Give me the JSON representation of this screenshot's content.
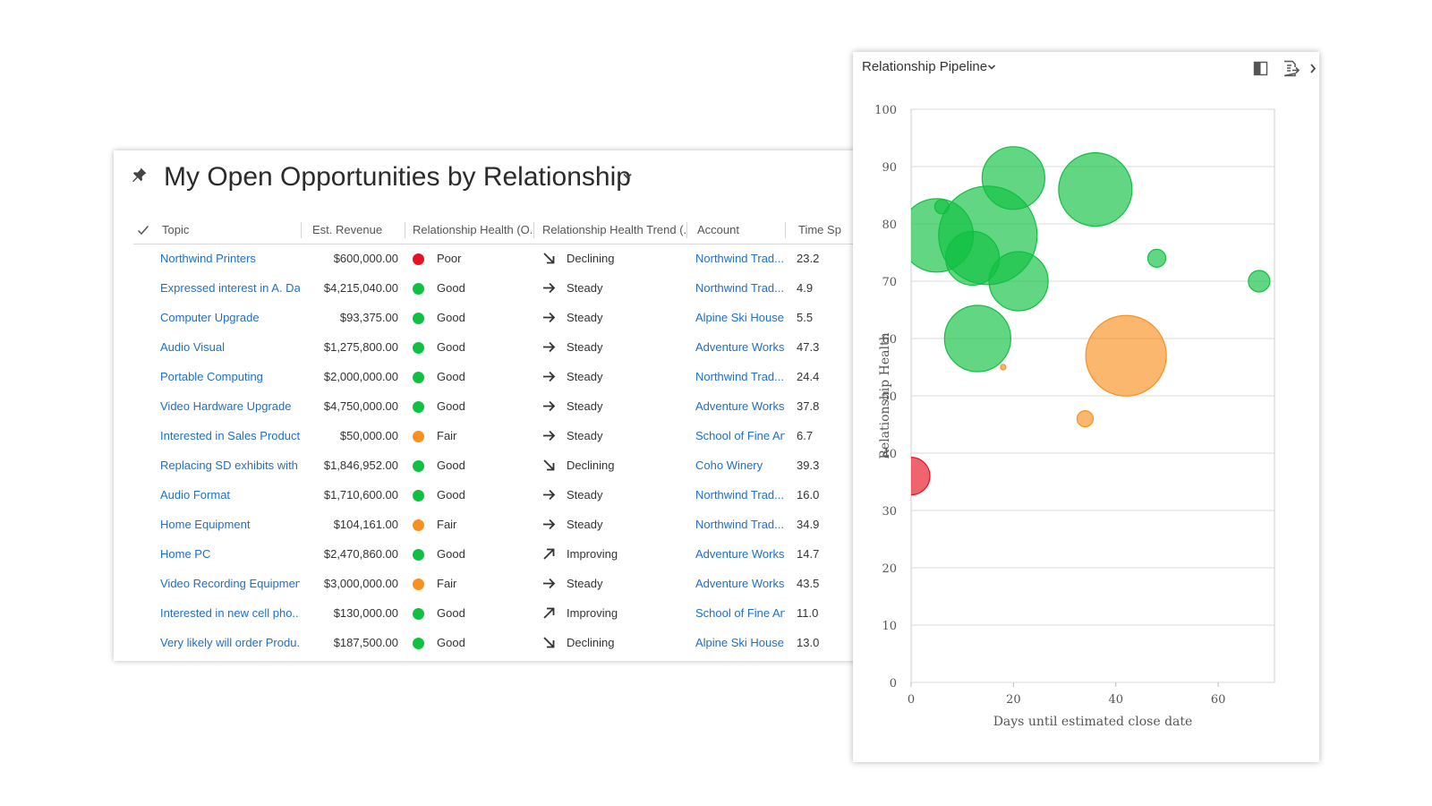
{
  "list_view": {
    "title": "My Open Opportunities by Relationship",
    "columns": [
      "Topic",
      "Est. Revenue",
      "Relationship Health (O...",
      "Relationship Health Trend (...",
      "Account",
      "Time Sp"
    ],
    "rows": [
      {
        "topic": "Northwind Printers",
        "revenue": "$600,000.00",
        "health": "Poor",
        "trend": "Declining",
        "account": "Northwind Trad...",
        "time": "23.2"
      },
      {
        "topic": "Expressed interest in A. Da...",
        "revenue": "$4,215,040.00",
        "health": "Good",
        "trend": "Steady",
        "account": "Northwind Trad...",
        "time": "4.9"
      },
      {
        "topic": "Computer Upgrade",
        "revenue": "$93,375.00",
        "health": "Good",
        "trend": "Steady",
        "account": "Alpine Ski House",
        "time": "5.5"
      },
      {
        "topic": "Audio Visual",
        "revenue": "$1,275,800.00",
        "health": "Good",
        "trend": "Steady",
        "account": "Adventure Works",
        "time": "47.3"
      },
      {
        "topic": "Portable Computing",
        "revenue": "$2,000,000.00",
        "health": "Good",
        "trend": "Steady",
        "account": "Northwind Trad...",
        "time": "24.4"
      },
      {
        "topic": "Video Hardware Upgrade",
        "revenue": "$4,750,000.00",
        "health": "Good",
        "trend": "Steady",
        "account": "Adventure Works",
        "time": "37.8"
      },
      {
        "topic": "Interested in Sales Product...",
        "revenue": "$50,000.00",
        "health": "Fair",
        "trend": "Steady",
        "account": "School of Fine Art",
        "time": "6.7"
      },
      {
        "topic": "Replacing SD exhibits with ...",
        "revenue": "$1,846,952.00",
        "health": "Good",
        "trend": "Declining",
        "account": "Coho Winery",
        "time": "39.3"
      },
      {
        "topic": "Audio Format",
        "revenue": "$1,710,600.00",
        "health": "Good",
        "trend": "Steady",
        "account": "Northwind Trad...",
        "time": "16.0"
      },
      {
        "topic": "Home Equipment",
        "revenue": "$104,161.00",
        "health": "Fair",
        "trend": "Steady",
        "account": "Northwind Trad...",
        "time": "34.9"
      },
      {
        "topic": "Home PC",
        "revenue": "$2,470,860.00",
        "health": "Good",
        "trend": "Improving",
        "account": "Adventure Works",
        "time": "14.7"
      },
      {
        "topic": "Video Recording Equipment",
        "revenue": "$3,000,000.00",
        "health": "Fair",
        "trend": "Steady",
        "account": "Adventure Works",
        "time": "43.5"
      },
      {
        "topic": "Interested in new cell pho...",
        "revenue": "$130,000.00",
        "health": "Good",
        "trend": "Improving",
        "account": "School of Fine Art",
        "time": "11.0"
      },
      {
        "topic": "Very likely will order Produ...",
        "revenue": "$187,500.00",
        "health": "Good",
        "trend": "Declining",
        "account": "Alpine Ski House",
        "time": "13.0"
      }
    ]
  },
  "health_colors": {
    "Poor": "#e81123",
    "Good": "#10c040",
    "Fair": "#f7901e"
  },
  "trend_icons": {
    "Declining": "arrow-down-right-icon",
    "Steady": "arrow-right-icon",
    "Improving": "arrow-up-right-icon"
  },
  "chart_panel": {
    "title": "Relationship Pipeline"
  },
  "chart_data": {
    "type": "bubble",
    "xlabel": "Days until estimated close date",
    "ylabel": "Relationship Health",
    "xlim": [
      0,
      71
    ],
    "ylim": [
      0,
      100
    ],
    "xticks": [
      0,
      20,
      40,
      60
    ],
    "yticks": [
      0,
      10,
      20,
      30,
      40,
      50,
      60,
      70,
      80,
      90,
      100
    ],
    "grid": true,
    "colors": {
      "green": "#10c040",
      "orange": "#f7901e",
      "red": "#e81123"
    },
    "points": [
      {
        "x": 5,
        "y": 78,
        "r": 41,
        "color": "green"
      },
      {
        "x": 12,
        "y": 74,
        "r": 30,
        "color": "green"
      },
      {
        "x": 15,
        "y": 78,
        "r": 55,
        "color": "green"
      },
      {
        "x": 6,
        "y": 83,
        "r": 8,
        "color": "green"
      },
      {
        "x": 20,
        "y": 88,
        "r": 35,
        "color": "green"
      },
      {
        "x": 21,
        "y": 70,
        "r": 33,
        "color": "green"
      },
      {
        "x": 36,
        "y": 86,
        "r": 41,
        "color": "green"
      },
      {
        "x": 13,
        "y": 60,
        "r": 37,
        "color": "green"
      },
      {
        "x": 48,
        "y": 74,
        "r": 10,
        "color": "green"
      },
      {
        "x": 68,
        "y": 70,
        "r": 12,
        "color": "green"
      },
      {
        "x": 42,
        "y": 57,
        "r": 45,
        "color": "orange"
      },
      {
        "x": 34,
        "y": 46,
        "r": 9,
        "color": "orange"
      },
      {
        "x": 18,
        "y": 55,
        "r": 3,
        "color": "orange"
      },
      {
        "x": 0,
        "y": 36,
        "r": 21,
        "color": "red"
      }
    ]
  }
}
